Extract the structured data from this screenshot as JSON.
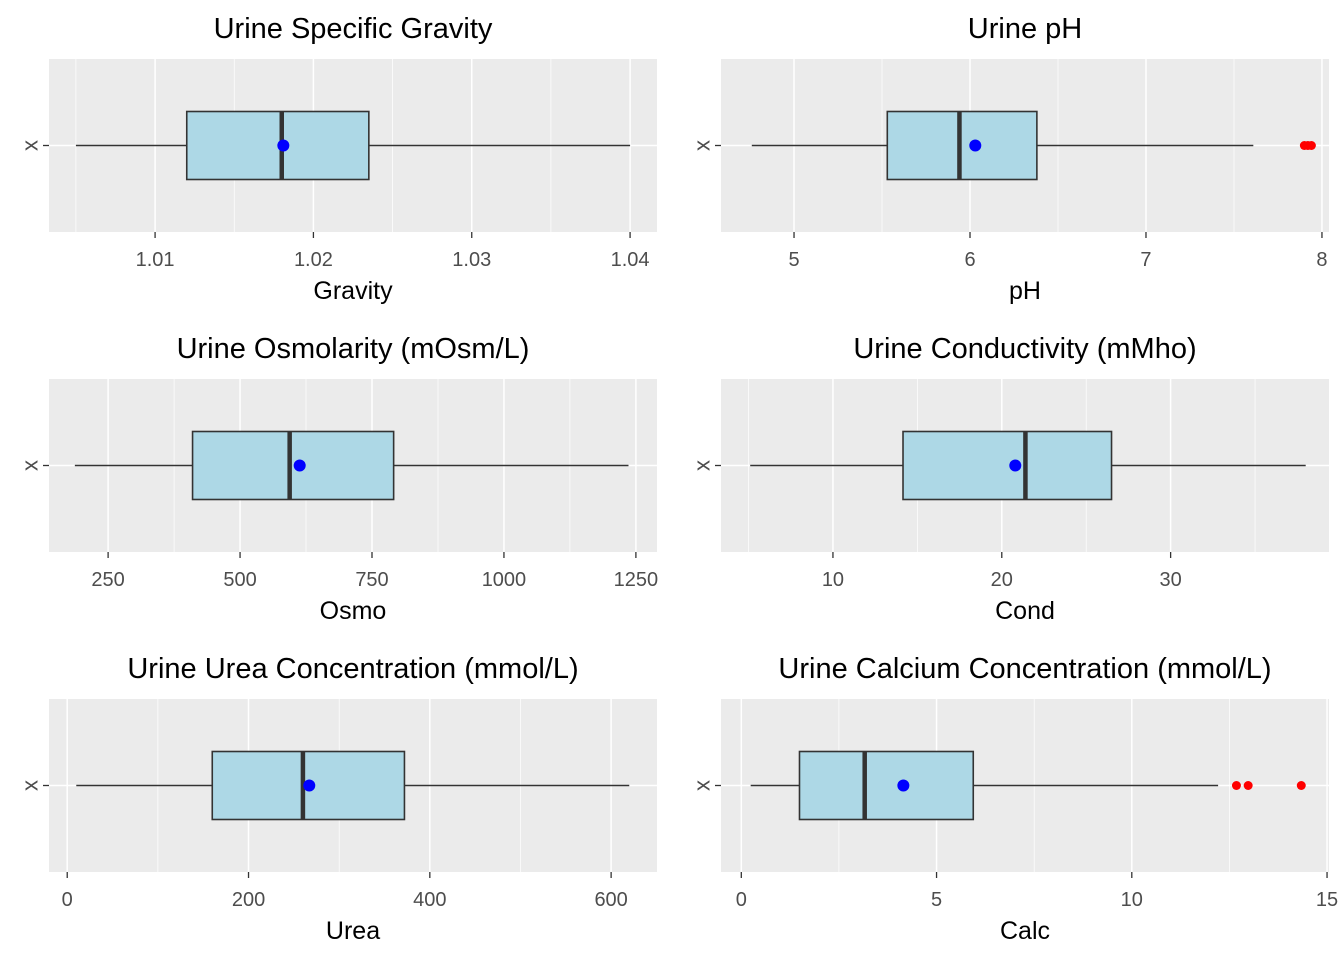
{
  "chart_data": [
    {
      "type": "boxplot",
      "title": "Urine Specific Gravity",
      "xlabel": "Gravity",
      "ylabel": "",
      "category": "x",
      "xlim": [
        1.0033,
        1.0417
      ],
      "ticks": [
        1.01,
        1.02,
        1.03,
        1.04
      ],
      "tick_labels": [
        "1.01",
        "1.02",
        "1.03",
        "1.04"
      ],
      "minor_ticks": [
        1.005,
        1.015,
        1.025,
        1.035
      ],
      "box": {
        "whisker_low": 1.005,
        "q1": 1.012,
        "median": 1.018,
        "q3": 1.0235,
        "whisker_high": 1.04
      },
      "mean": 1.0181,
      "outliers": []
    },
    {
      "type": "boxplot",
      "title": "Urine pH",
      "xlabel": "pH",
      "ylabel": "",
      "category": "x",
      "xlim": [
        4.585,
        8.04
      ],
      "ticks": [
        5,
        6,
        7,
        8
      ],
      "tick_labels": [
        "5",
        "6",
        "7",
        "8"
      ],
      "minor_ticks": [
        5.5,
        6.5,
        7.5
      ],
      "box": {
        "whisker_low": 4.76,
        "q1": 5.53,
        "median": 5.94,
        "q3": 6.38,
        "whisker_high": 7.61
      },
      "mean": 6.03,
      "outliers": [
        7.9,
        7.92,
        7.94
      ]
    },
    {
      "type": "boxplot",
      "title": "Urine Osmolarity (mOsm/L)",
      "xlabel": "Osmo",
      "ylabel": "",
      "category": "x",
      "xlim": [
        138,
        1290
      ],
      "ticks": [
        250,
        500,
        750,
        1000,
        1250
      ],
      "tick_labels": [
        "250",
        "500",
        "750",
        "1000",
        "1250"
      ],
      "minor_ticks": [
        375,
        625,
        875,
        1125
      ],
      "box": {
        "whisker_low": 187,
        "q1": 410,
        "median": 594,
        "q3": 791,
        "whisker_high": 1236
      },
      "mean": 613,
      "outliers": []
    },
    {
      "type": "boxplot",
      "title": "Urine Conductivity (mMho)",
      "xlabel": "Cond",
      "ylabel": "",
      "category": "x",
      "xlim": [
        3.37,
        39.38
      ],
      "ticks": [
        10,
        20,
        30
      ],
      "tick_labels": [
        "10",
        "20",
        "30"
      ],
      "minor_ticks": [
        5,
        15,
        25,
        35
      ],
      "box": {
        "whisker_low": 5.1,
        "q1": 14.15,
        "median": 21.4,
        "q3": 26.5,
        "whisker_high": 38.0
      },
      "mean": 20.8,
      "outliers": []
    },
    {
      "type": "boxplot",
      "title": "Urine Urea Concentration (mmol/L)",
      "xlabel": "Urea",
      "ylabel": "",
      "category": "x",
      "xlim": [
        -20.1,
        650.6
      ],
      "ticks": [
        0,
        200,
        400,
        600
      ],
      "tick_labels": [
        "0",
        "200",
        "400",
        "600"
      ],
      "minor_ticks": [
        100,
        300,
        500
      ],
      "box": {
        "whisker_low": 10,
        "q1": 160,
        "median": 260,
        "q3": 372,
        "whisker_high": 620
      },
      "mean": 267,
      "outliers": []
    },
    {
      "type": "boxplot",
      "title": "Urine Calcium Concentration (mmol/L)",
      "xlabel": "Calc",
      "ylabel": "",
      "category": "x",
      "xlim": [
        -0.52,
        15.05
      ],
      "ticks": [
        0,
        5,
        10,
        15
      ],
      "tick_labels": [
        "0",
        "5",
        "10",
        "15"
      ],
      "minor_ticks": [
        2.5,
        7.5,
        12.5
      ],
      "box": {
        "whisker_low": 0.24,
        "q1": 1.49,
        "median": 3.16,
        "q3": 5.94,
        "whisker_high": 12.21
      },
      "mean": 4.15,
      "outliers": [
        12.68,
        12.98,
        14.34
      ]
    }
  ],
  "colors": {
    "panel_bg": "#ebebeb",
    "grid_major": "#ffffff",
    "box_fill": "#add8e6",
    "box_stroke": "#333333",
    "mean_point": "#0000ff",
    "outlier_point": "#ff0000"
  }
}
